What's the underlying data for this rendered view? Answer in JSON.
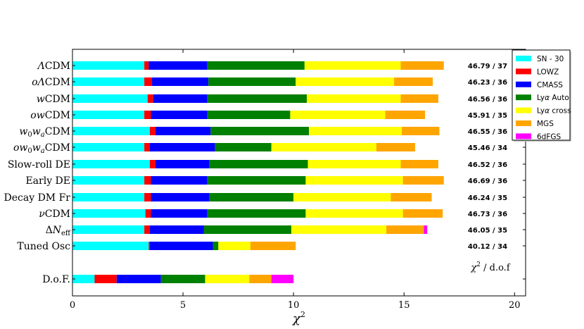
{
  "chart_data": {
    "type": "bar",
    "orientation": "horizontal",
    "stacked": true,
    "xlabel": "χ²",
    "xlim": [
      0,
      20.5
    ],
    "xticks": [
      0,
      5,
      10,
      15,
      20
    ],
    "annotation": "χ² / d.o.f",
    "legend_position": "top-right",
    "series_names": [
      "SN - 30",
      "LOWZ",
      "CMASS",
      "Lyα Auto",
      "Lyα cross",
      "MGS",
      "6dFGS"
    ],
    "series_colors": [
      "#00ffff",
      "#ff0000",
      "#0000ff",
      "#008000",
      "#ffff00",
      "#ffa500",
      "#ff00ff"
    ],
    "rows": [
      {
        "label": "ΛCDM",
        "values": [
          3.25,
          0.2,
          2.65,
          4.4,
          4.35,
          1.95,
          0
        ],
        "chi2_dof": "46.79 / 37"
      },
      {
        "label": "oΛCDM",
        "values": [
          3.25,
          0.35,
          2.55,
          3.95,
          4.45,
          1.75,
          0
        ],
        "chi2_dof": "46.23 / 36"
      },
      {
        "label": "wCDM",
        "values": [
          3.4,
          0.25,
          2.45,
          4.5,
          4.25,
          1.7,
          0
        ],
        "chi2_dof": "46.56 / 36"
      },
      {
        "label": "owCDM",
        "values": [
          3.25,
          0.3,
          2.55,
          3.75,
          4.3,
          1.8,
          0
        ],
        "chi2_dof": "45.91 / 35"
      },
      {
        "label": "w₀wₐCDM",
        "values": [
          3.5,
          0.25,
          2.5,
          4.45,
          4.2,
          1.7,
          0
        ],
        "chi2_dof": "46.55 / 36"
      },
      {
        "label": "ow₀wₐCDM",
        "values": [
          3.25,
          0.25,
          2.95,
          2.55,
          4.75,
          1.75,
          0
        ],
        "chi2_dof": "45.46 / 34"
      },
      {
        "label": "Slow-roll DE",
        "values": [
          3.5,
          0.25,
          2.45,
          4.45,
          4.2,
          1.7,
          0
        ],
        "chi2_dof": "46.52 / 36"
      },
      {
        "label": "Early DE",
        "values": [
          3.25,
          0.3,
          2.55,
          4.45,
          4.4,
          1.85,
          0
        ],
        "chi2_dof": "46.69 / 36"
      },
      {
        "label": "Decay DM Fr",
        "values": [
          3.25,
          0.3,
          2.65,
          3.8,
          4.4,
          1.85,
          0
        ],
        "chi2_dof": "46.24 / 35"
      },
      {
        "label": "νCDM",
        "values": [
          3.3,
          0.25,
          2.55,
          4.45,
          4.4,
          1.8,
          0
        ],
        "chi2_dof": "46.73 / 36"
      },
      {
        "label": "ΔN_eff",
        "values": [
          3.25,
          0.25,
          2.45,
          3.95,
          4.3,
          1.7,
          0.15
        ],
        "chi2_dof": "46.05 / 35"
      },
      {
        "label": "Tuned Osc",
        "values": [
          3.45,
          0.05,
          2.85,
          0.25,
          1.45,
          2.05,
          0
        ],
        "chi2_dof": "40.12 / 34"
      },
      {
        "label": "D.o.F.",
        "values": [
          1,
          1,
          2,
          2,
          2,
          1,
          1
        ],
        "chi2_dof": ""
      }
    ]
  }
}
